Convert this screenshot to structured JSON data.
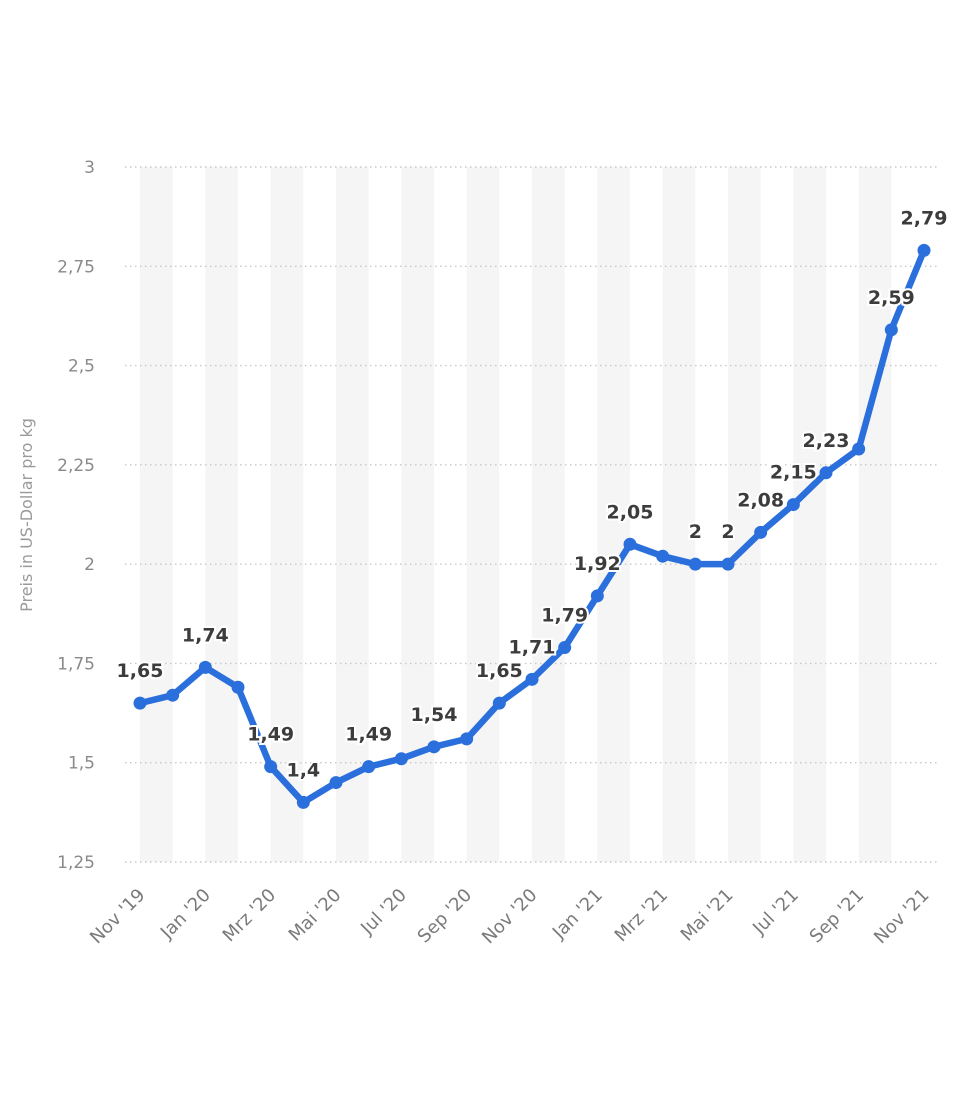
{
  "chart_data": {
    "type": "line",
    "ylabel": "Preis in US-Dollar pro kg",
    "ylim": [
      1.25,
      3
    ],
    "yticks": [
      1.25,
      1.5,
      1.75,
      2,
      2.25,
      2.5,
      2.75,
      3
    ],
    "ytick_labels": [
      "1,25",
      "1,5",
      "1,75",
      "2",
      "2,25",
      "2,5",
      "2,75",
      "3"
    ],
    "grid": true,
    "legend": "none",
    "x": [
      "Nov '19",
      "Dez '19",
      "Jan '20",
      "Feb '20",
      "Mrz '20",
      "Apr '20",
      "Mai '20",
      "Jun '20",
      "Jul '20",
      "Aug '20",
      "Sep '20",
      "Okt '20",
      "Nov '20",
      "Dez '20",
      "Jan '21",
      "Feb '21",
      "Mrz '21",
      "Apr '21",
      "Mai '21",
      "Jun '21",
      "Jul '21",
      "Aug '21",
      "Sep '21",
      "Okt '21",
      "Nov '21"
    ],
    "x_tick_labels": [
      "Nov '19",
      "Jan '20",
      "Mrz '20",
      "Mai '20",
      "Jul '20",
      "Sep '20",
      "Nov '20",
      "Jan '21",
      "Mrz '21",
      "Mai '21",
      "Jul '21",
      "Sep '21",
      "Nov '21"
    ],
    "series": [
      {
        "color": "#2a6fdb",
        "values": [
          1.65,
          1.67,
          1.74,
          1.69,
          1.49,
          1.4,
          1.45,
          1.49,
          1.51,
          1.54,
          1.56,
          1.65,
          1.71,
          1.79,
          1.92,
          2.05,
          2.02,
          2.0,
          2.0,
          2.08,
          2.15,
          2.23,
          2.29,
          2.59,
          2.79
        ],
        "data_labels": [
          "1,65",
          "",
          "1,74",
          "",
          "1,49",
          "1,4",
          "",
          "1,49",
          "",
          "1,54",
          "",
          "1,65",
          "1,71",
          "1,79",
          "1,92",
          "2,05",
          "",
          "2",
          "2",
          "2,08",
          "2,15",
          "2,23",
          "",
          "2,59",
          "2,79"
        ]
      }
    ],
    "band_color": "#f5f5f5"
  }
}
